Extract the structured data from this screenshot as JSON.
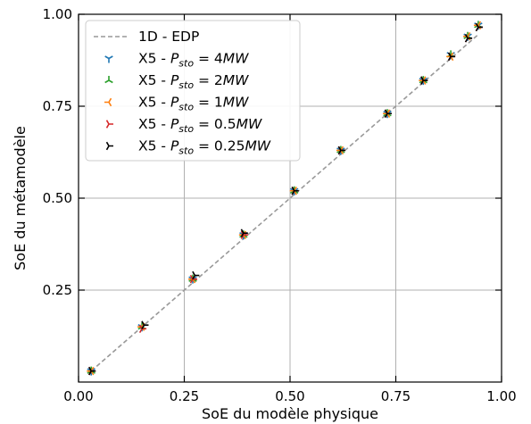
{
  "chart_data": {
    "type": "scatter",
    "xlabel": "SoE du modèle physique",
    "ylabel": "SoE du métamodèle",
    "xlim": [
      0.0,
      1.0
    ],
    "ylim": [
      0.0,
      1.0
    ],
    "xticks": [
      "0.00",
      "0.25",
      "0.50",
      "0.75",
      "1.00"
    ],
    "yticks": [
      "0.25",
      "0.50",
      "0.75",
      "1.00"
    ],
    "grid": true,
    "legend_position": "top-left",
    "reference_line": {
      "name": "1D - EDP",
      "x": [
        0.03,
        0.945
      ],
      "y": [
        0.03,
        0.945
      ],
      "color": "#999999",
      "style": "dashed"
    },
    "series": [
      {
        "legend": {
          "prefix": "X5 - ",
          "var": "P",
          "sub": "sto",
          "value": " = 4MW"
        },
        "color": "#1f77b4",
        "marker": "tri-down",
        "x": [
          0.03,
          0.15,
          0.27,
          0.39,
          0.51,
          0.62,
          0.73,
          0.815,
          0.88,
          0.92,
          0.945
        ],
        "y": [
          0.03,
          0.15,
          0.28,
          0.4,
          0.52,
          0.63,
          0.73,
          0.82,
          0.89,
          0.94,
          0.97
        ]
      },
      {
        "legend": {
          "prefix": "X5 - ",
          "var": "P",
          "sub": "sto",
          "value": " = 2MW"
        },
        "color": "#2ca02c",
        "marker": "tri-up",
        "x": [
          0.03,
          0.15,
          0.27,
          0.39,
          0.51,
          0.62,
          0.73,
          0.815,
          0.88,
          0.92,
          0.945
        ],
        "y": [
          0.03,
          0.15,
          0.28,
          0.4,
          0.52,
          0.63,
          0.73,
          0.82,
          0.89,
          0.94,
          0.97
        ]
      },
      {
        "legend": {
          "prefix": "X5 - ",
          "var": "P",
          "sub": "sto",
          "value": " = 1MW"
        },
        "color": "#ff7f0e",
        "marker": "tri-left",
        "x": [
          0.03,
          0.15,
          0.27,
          0.39,
          0.51,
          0.62,
          0.73,
          0.815,
          0.88,
          0.92,
          0.945
        ],
        "y": [
          0.03,
          0.15,
          0.28,
          0.4,
          0.52,
          0.63,
          0.73,
          0.82,
          0.885,
          0.94,
          0.97
        ]
      },
      {
        "legend": {
          "prefix": "X5 - ",
          "var": "P",
          "sub": "sto",
          "value": " = 0.5MW"
        },
        "color": "#d62728",
        "marker": "tri-right",
        "x": [
          0.03,
          0.15,
          0.27,
          0.39,
          0.51,
          0.62,
          0.73,
          0.815,
          0.88,
          0.92,
          0.945
        ],
        "y": [
          0.03,
          0.145,
          0.28,
          0.4,
          0.52,
          0.63,
          0.73,
          0.82,
          0.885,
          0.935,
          0.965
        ]
      },
      {
        "legend": {
          "prefix": "X5 - ",
          "var": "P",
          "sub": "sto",
          "value": " = 0.25MW"
        },
        "color": "#000000",
        "marker": "tri-right",
        "x": [
          0.03,
          0.155,
          0.275,
          0.39,
          0.51,
          0.62,
          0.73,
          0.815,
          0.88,
          0.92,
          0.945
        ],
        "y": [
          0.03,
          0.155,
          0.29,
          0.405,
          0.52,
          0.63,
          0.73,
          0.82,
          0.885,
          0.935,
          0.965
        ]
      }
    ]
  }
}
